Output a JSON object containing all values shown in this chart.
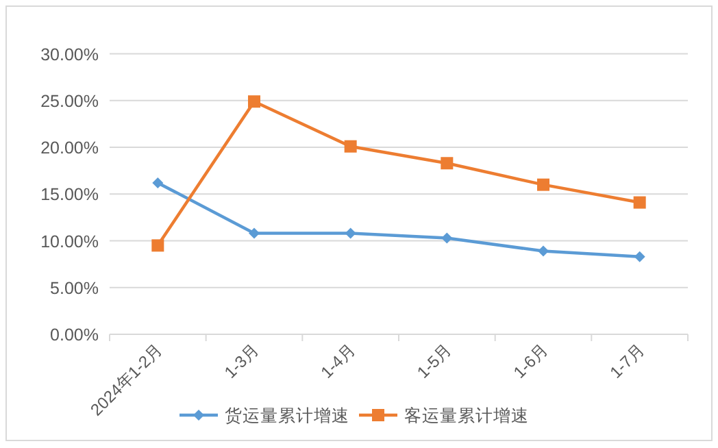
{
  "chart_data": {
    "type": "line",
    "categories": [
      "2024年1-2月",
      "1-3月",
      "1-4月",
      "1-5月",
      "1-6月",
      "1-7月"
    ],
    "series": [
      {
        "name": "货运量累计增速",
        "color": "#5b9bd5",
        "marker": "diamond",
        "values": [
          16.2,
          10.8,
          10.8,
          10.3,
          8.9,
          8.3
        ]
      },
      {
        "name": "客运量累计增速",
        "color": "#ed7d31",
        "marker": "square",
        "values": [
          9.5,
          24.9,
          20.1,
          18.3,
          16.0,
          14.1
        ]
      }
    ],
    "ylim": [
      0,
      30
    ],
    "yticks": [
      {
        "value": 0,
        "label": "0.00%"
      },
      {
        "value": 5,
        "label": "5.00%"
      },
      {
        "value": 10,
        "label": "10.00%"
      },
      {
        "value": 15,
        "label": "15.00%"
      },
      {
        "value": 20,
        "label": "20.00%"
      },
      {
        "value": 25,
        "label": "25.00%"
      },
      {
        "value": 30,
        "label": "30.00%"
      }
    ],
    "grid": "y",
    "legend": "bottom",
    "line_style": "solid"
  }
}
